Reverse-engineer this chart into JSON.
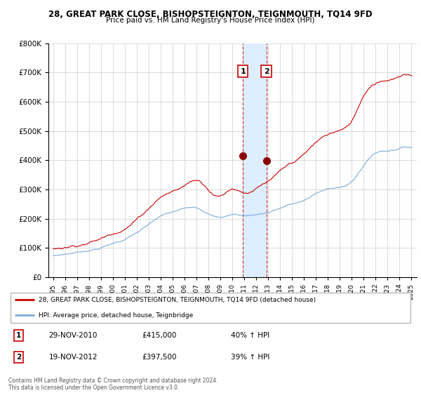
{
  "title": "28, GREAT PARK CLOSE, BISHOPSTEIGNTON, TEIGNMOUTH, TQ14 9FD",
  "subtitle": "Price paid vs. HM Land Registry's House Price Index (HPI)",
  "legend_line1": "28, GREAT PARK CLOSE, BISHOPSTEIGNTON, TEIGNMOUTH, TQ14 9FD (detached house)",
  "legend_line2": "HPI: Average price, detached house, Teignbridge",
  "sale1_label": "1",
  "sale1_date": "29-NOV-2010",
  "sale1_price": "£415,000",
  "sale1_pct": "40% ↑ HPI",
  "sale2_label": "2",
  "sale2_date": "19-NOV-2012",
  "sale2_price": "£397,500",
  "sale2_pct": "39% ↑ HPI",
  "footer": "Contains HM Land Registry data © Crown copyright and database right 2024.\nThis data is licensed under the Open Government Licence v3.0.",
  "property_color": "#cc0000",
  "hpi_color": "#7aaadd",
  "shade_color": "#ddeeff",
  "marker_color": "#880000",
  "ylim": [
    0,
    800000
  ],
  "sale1_year": 2010.917,
  "sale1_value": 415000,
  "sale2_year": 2012.88,
  "sale2_value": 397500
}
